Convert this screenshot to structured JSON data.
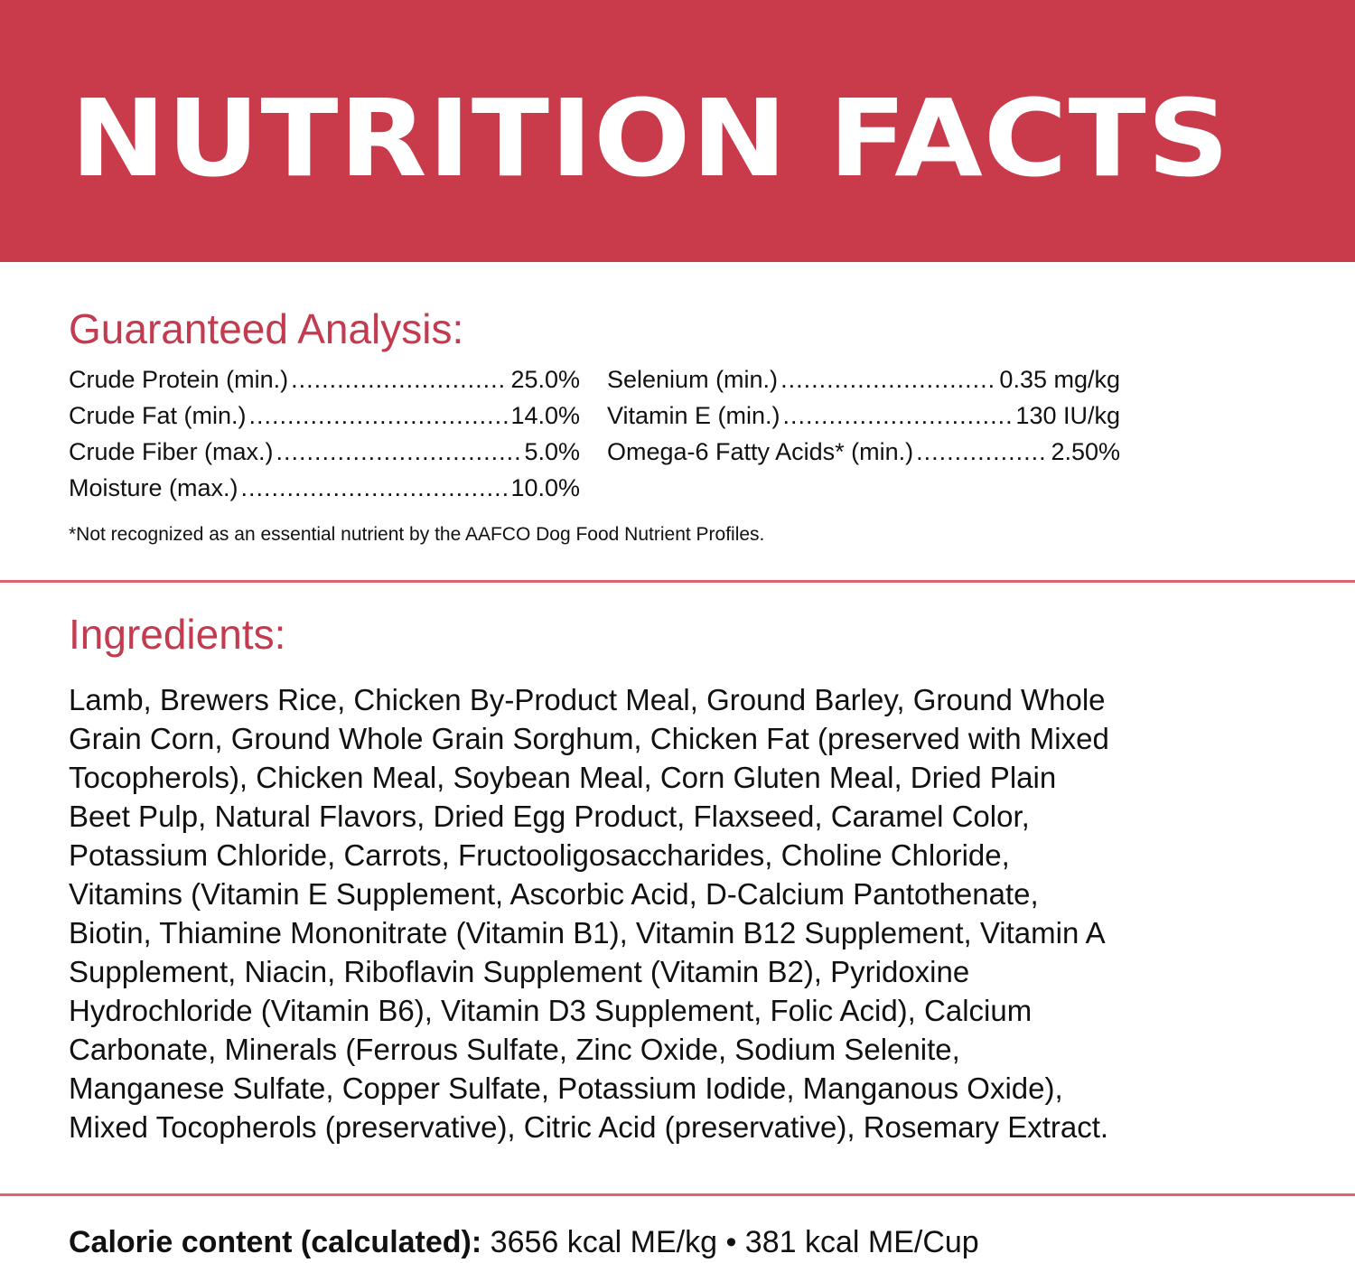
{
  "header": {
    "title": "NUTRITION FACTS",
    "background": "#C93A4B"
  },
  "guaranteed_analysis": {
    "title": "Guaranteed Analysis:",
    "left": [
      {
        "label": "Crude Protein (min.)",
        "value": "25.0%"
      },
      {
        "label": "Crude Fat (min.)",
        "value": "14.0%"
      },
      {
        "label": "Crude Fiber (max.)",
        "value": "5.0%"
      },
      {
        "label": "Moisture (max.)",
        "value": "10.0%"
      }
    ],
    "right": [
      {
        "label": "Selenium (min.)",
        "value": "0.35 mg/kg"
      },
      {
        "label": "Vitamin E (min.)",
        "value": "130 IU/kg"
      },
      {
        "label": "Omega-6 Fatty Acids* (min.)",
        "value": "2.50%"
      }
    ],
    "footnote": "*Not recognized as an essential nutrient by the AAFCO Dog Food Nutrient Profiles."
  },
  "ingredients": {
    "title": "Ingredients:",
    "lines": [
      "Lamb, Brewers Rice, Chicken By-Product Meal, Ground Barley, Ground Whole",
      "Grain Corn, Ground Whole Grain Sorghum, Chicken Fat (preserved with Mixed",
      "Tocopherols), Chicken Meal, Soybean Meal, Corn Gluten Meal, Dried Plain",
      "Beet Pulp, Natural Flavors, Dried Egg Product, Flaxseed, Caramel Color,",
      "Potassium Chloride, Carrots, Fructooligosaccharides, Choline Chloride,",
      "Vitamins (Vitamin E Supplement, Ascorbic Acid, D-Calcium Pantothenate,",
      "Biotin, Thiamine Mononitrate (Vitamin B1), Vitamin B12 Supplement, Vitamin A",
      "Supplement, Niacin, Riboflavin Supplement (Vitamin B2), Pyridoxine",
      "Hydrochloride (Vitamin B6), Vitamin D3 Supplement, Folic Acid), Calcium",
      "Carbonate, Minerals (Ferrous Sulfate, Zinc Oxide, Sodium Selenite,",
      "Manganese Sulfate, Copper Sulfate, Potassium Iodide, Manganous Oxide),",
      "Mixed Tocopherols (preservative), Citric Acid (preservative), Rosemary Extract."
    ]
  },
  "calorie": {
    "label": "Calorie content (calculated):",
    "value": "3656 kcal ME/kg • 381 kcal ME/Cup"
  },
  "colors": {
    "accent": "#C23B4E",
    "divider": "#E0646F"
  }
}
